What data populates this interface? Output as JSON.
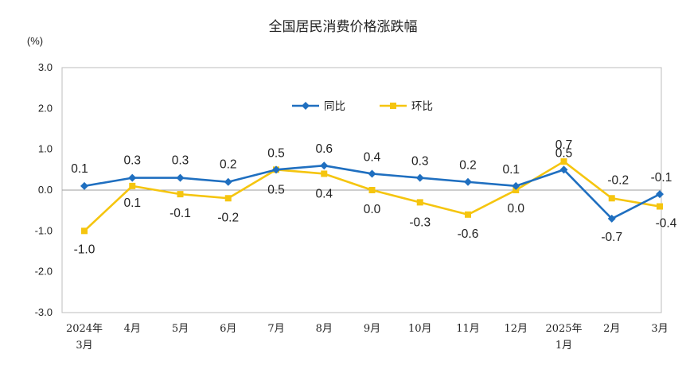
{
  "chart_data": {
    "type": "line",
    "title": "全国居民消费价格涨跌幅",
    "ylabel": "(%)",
    "ylim": [
      -3.0,
      3.0
    ],
    "yticks": [
      "3.0",
      "2.0",
      "1.0",
      "0.0",
      "-1.0",
      "-2.0",
      "-3.0"
    ],
    "categories": [
      [
        "2024年",
        "3月"
      ],
      [
        "4月"
      ],
      [
        "5月"
      ],
      [
        "6月"
      ],
      [
        "7月"
      ],
      [
        "8月"
      ],
      [
        "9月"
      ],
      [
        "10月"
      ],
      [
        "11月"
      ],
      [
        "12月"
      ],
      [
        "2025年",
        "1月"
      ],
      [
        "2月"
      ],
      [
        "3月"
      ]
    ],
    "legend_position": "top-center",
    "series": [
      {
        "name": "同比",
        "color": "#1f6fc0",
        "marker": "diamond",
        "values": [
          0.1,
          0.3,
          0.3,
          0.2,
          0.5,
          0.6,
          0.4,
          0.3,
          0.2,
          0.1,
          0.5,
          -0.7,
          -0.1
        ],
        "labels": [
          "0.1",
          "0.3",
          "0.3",
          "0.2",
          "0.5",
          "0.6",
          "0.4",
          "0.3",
          "0.2",
          "0.1",
          "0.5",
          "-0.7",
          "-0.1"
        ]
      },
      {
        "name": "环比",
        "color": "#f5c50f",
        "marker": "square",
        "values": [
          -1.0,
          0.1,
          -0.1,
          -0.2,
          0.5,
          0.4,
          0.0,
          -0.3,
          -0.6,
          0.0,
          0.7,
          -0.2,
          -0.4
        ],
        "labels": [
          "-1.0",
          "0.1",
          "-0.1",
          "-0.2",
          "0.5",
          "0.4",
          "0.0",
          "-0.3",
          "-0.6",
          "0.0",
          "0.7",
          "-0.2",
          "-0.4"
        ]
      }
    ]
  }
}
